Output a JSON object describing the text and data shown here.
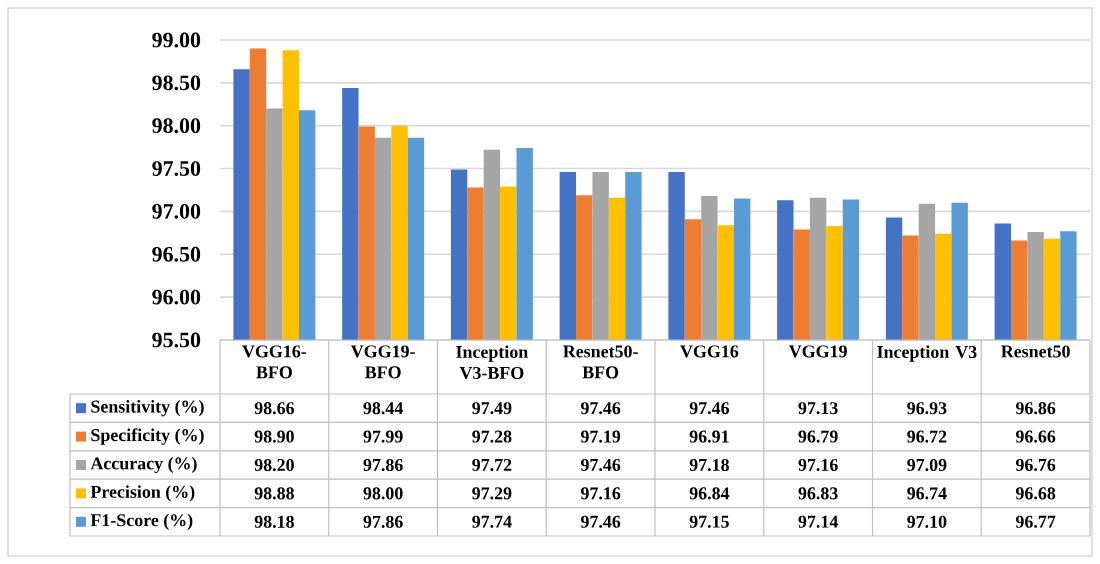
{
  "chart_data": {
    "type": "bar",
    "categories": [
      "VGG16-BFO",
      "VGG19-BFO",
      "Inception V3-BFO",
      "Resnet50-BFO",
      "VGG16",
      "VGG19",
      "Inception V3",
      "Resnet50"
    ],
    "series": [
      {
        "name": "Sensitivity (%)",
        "color": "#4472c4",
        "values": [
          98.66,
          98.44,
          97.49,
          97.46,
          97.46,
          97.13,
          96.93,
          96.86
        ],
        "value_labels": [
          "98.66",
          "98.44",
          "97.49",
          "97.46",
          "97.46",
          "97.13",
          "96.93",
          "96.86"
        ]
      },
      {
        "name": "Specificity (%)",
        "color": "#ed7d31",
        "values": [
          98.9,
          97.99,
          97.28,
          97.19,
          96.91,
          96.79,
          96.72,
          96.66
        ],
        "value_labels": [
          "98.90",
          "97.99",
          "97.28",
          "97.19",
          "96.91",
          "96.79",
          "96.72",
          "96.66"
        ]
      },
      {
        "name": "Accuracy (%)",
        "color": "#a5a5a5",
        "values": [
          98.2,
          97.86,
          97.72,
          97.46,
          97.18,
          97.16,
          97.09,
          96.76
        ],
        "value_labels": [
          "98.20",
          "97.86",
          "97.72",
          "97.46",
          "97.18",
          "97.16",
          "97.09",
          "96.76"
        ]
      },
      {
        "name": "Precision (%)",
        "color": "#ffc000",
        "values": [
          98.88,
          98.0,
          97.29,
          97.16,
          96.84,
          96.83,
          96.74,
          96.68
        ],
        "value_labels": [
          "98.88",
          "98.00",
          "97.29",
          "97.16",
          "96.84",
          "96.83",
          "96.74",
          "96.68"
        ]
      },
      {
        "name": "F1-Score (%)",
        "color": "#5b9bd5",
        "values": [
          98.18,
          97.86,
          97.74,
          97.46,
          97.15,
          97.14,
          97.1,
          96.77
        ],
        "value_labels": [
          "98.18",
          "97.86",
          "97.74",
          "97.46",
          "97.15",
          "97.14",
          "97.10",
          "96.77"
        ]
      }
    ],
    "ylim": [
      95.5,
      99.0
    ],
    "yticks": [
      {
        "value": 95.5,
        "label": "95.50"
      },
      {
        "value": 96.0,
        "label": "96.00"
      },
      {
        "value": 96.5,
        "label": "96.50"
      },
      {
        "value": 97.0,
        "label": "97.00"
      },
      {
        "value": 97.5,
        "label": "97.50"
      },
      {
        "value": 98.0,
        "label": "98.00"
      },
      {
        "value": 98.5,
        "label": "98.50"
      },
      {
        "value": 99.0,
        "label": "99.00"
      }
    ],
    "grid": "y",
    "legend": "bottom"
  }
}
